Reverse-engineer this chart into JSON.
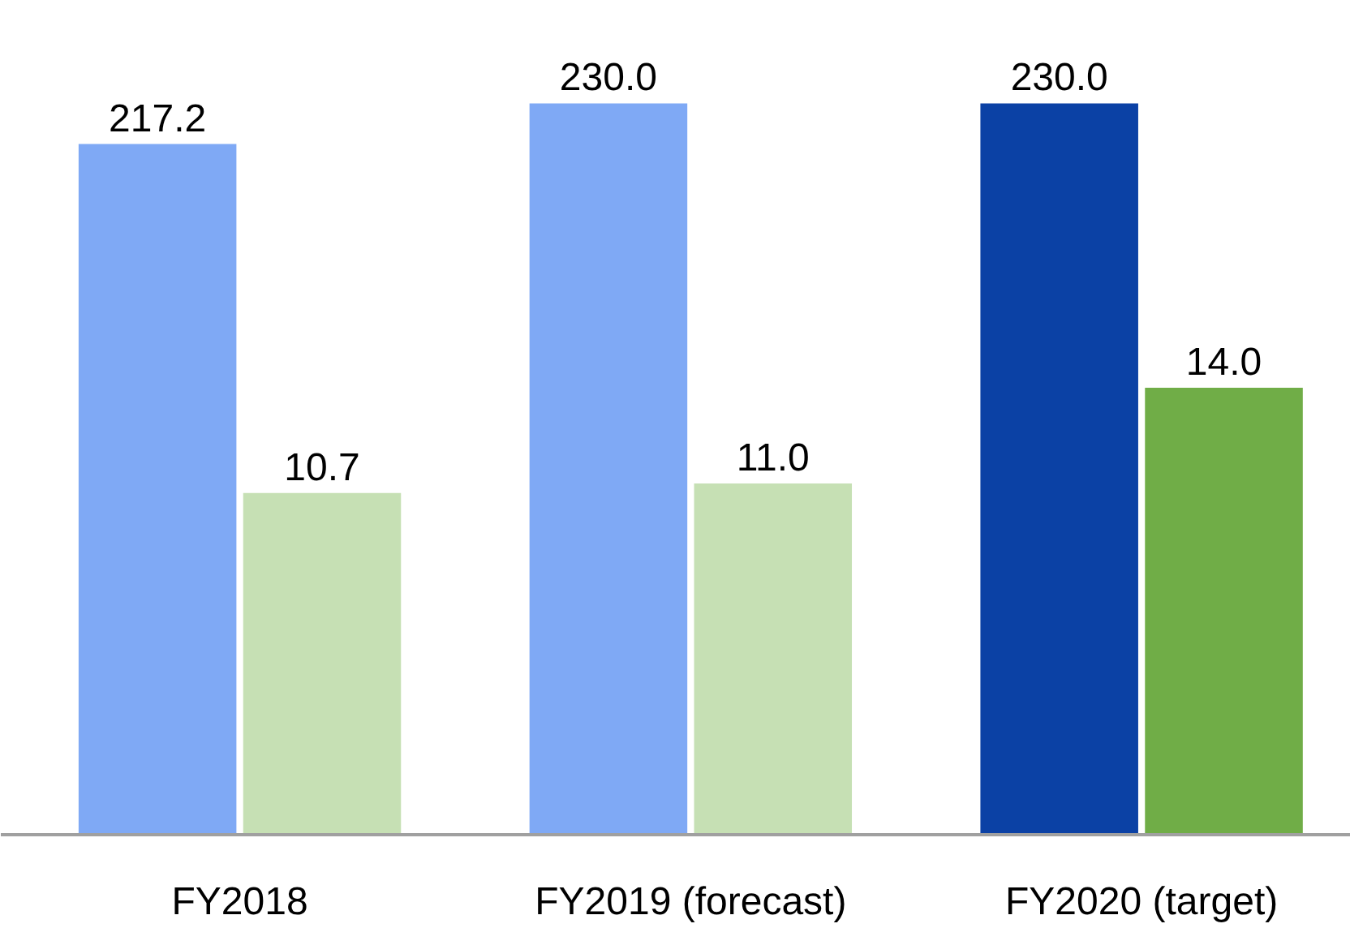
{
  "chart_data": {
    "type": "bar",
    "categories": [
      "FY2018",
      "FY2019 (forecast)",
      "FY2020 (target)"
    ],
    "series": [
      {
        "colors": [
          "#7fa9f5",
          "#7fa9f5",
          "#0b41a5"
        ],
        "values": [
          217.2,
          230.0,
          230.0
        ],
        "value_labels": [
          "217.2",
          "230.0",
          "230.0"
        ]
      },
      {
        "colors": [
          "#c6e0b4",
          "#c6e0b4",
          "#70ad47"
        ],
        "values": [
          10.7,
          11.0,
          14.0
        ],
        "value_labels": [
          "10.7",
          "11.0",
          "14.0"
        ],
        "axis": "y2"
      }
    ],
    "tick_labels": "x"
  }
}
